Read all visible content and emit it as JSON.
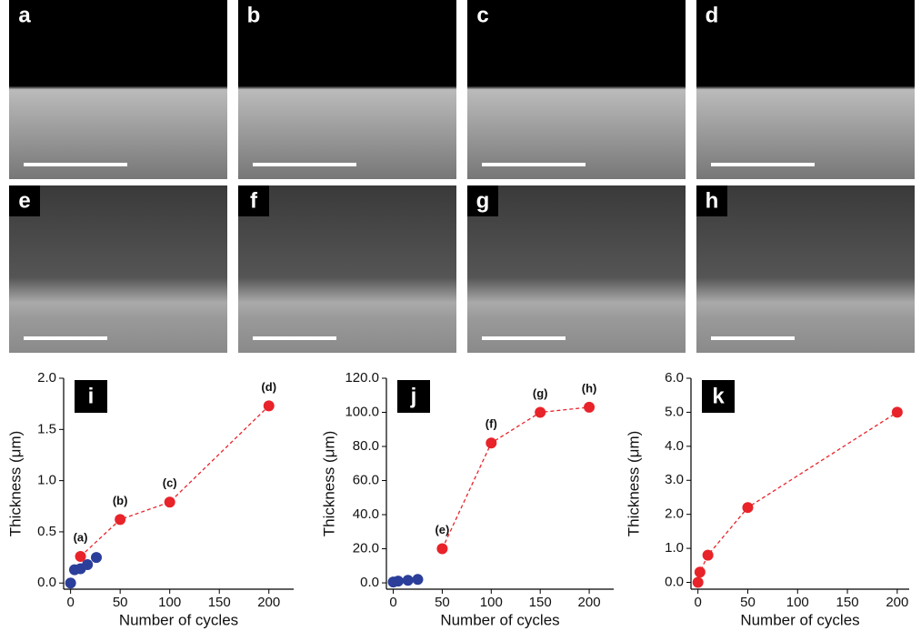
{
  "image_panels": [
    "a",
    "b",
    "c",
    "d",
    "e",
    "f",
    "g",
    "h"
  ],
  "chart_data": [
    {
      "type": "line",
      "panel_label": "i",
      "x_label": "Number of cycles",
      "y_label": "Thickness (μm)",
      "xlim": [
        -7,
        225
      ],
      "xticks": [
        0,
        50,
        100,
        150,
        200
      ],
      "ylim": [
        -0.06,
        2.0
      ],
      "yticks": [
        {
          "value": 0,
          "label": "0.0"
        },
        0.5,
        {
          "value": 1,
          "label": "1.0"
        },
        1.5,
        {
          "value": 2,
          "label": "2.0"
        }
      ],
      "series": [
        {
          "color": "#2b3e9a",
          "line": false,
          "x": [
            0,
            4,
            10,
            17,
            26
          ],
          "values": [
            0.0,
            0.13,
            0.14,
            0.18,
            0.25
          ]
        },
        {
          "color": "#e8232a",
          "line": true,
          "x": [
            10,
            50,
            100,
            200
          ],
          "values": [
            0.26,
            0.62,
            0.79,
            1.73
          ],
          "point_labels": [
            "(a)",
            "(b)",
            "(c)",
            "(d)"
          ]
        }
      ]
    },
    {
      "type": "line",
      "panel_label": "j",
      "x_label": "Number of cycles",
      "y_label": "Thickness (μm)",
      "xlim": [
        -7,
        225
      ],
      "xticks": [
        0,
        50,
        100,
        150,
        200
      ],
      "ylim": [
        -3.7,
        120
      ],
      "yticks": [
        {
          "value": 0,
          "label": "0.0"
        },
        {
          "value": 20,
          "label": "20.0"
        },
        {
          "value": 40,
          "label": "40.0"
        },
        {
          "value": 60,
          "label": "60.0"
        },
        {
          "value": 80,
          "label": "80.0"
        },
        {
          "value": 100,
          "label": "100.0"
        },
        {
          "value": 120,
          "label": "120.0"
        }
      ],
      "series": [
        {
          "color": "#2b3e9a",
          "line": false,
          "x": [
            0,
            5,
            15,
            25
          ],
          "values": [
            0.5,
            1,
            1.5,
            2
          ]
        },
        {
          "color": "#e8232a",
          "line": true,
          "x": [
            50,
            100,
            150,
            200
          ],
          "values": [
            20,
            82,
            100,
            103
          ],
          "point_labels": [
            "(e)",
            "(f)",
            "(g)",
            "(h)"
          ]
        }
      ]
    },
    {
      "type": "line",
      "panel_label": "k",
      "x_label": "Number of cycles",
      "y_label": "Thickness (μm)",
      "xlim": [
        -7,
        212
      ],
      "xticks": [
        0,
        50,
        100,
        150,
        200
      ],
      "ylim": [
        -0.2,
        6.0
      ],
      "yticks": [
        {
          "value": 0,
          "label": "0.0"
        },
        {
          "value": 1,
          "label": "1.0"
        },
        {
          "value": 2,
          "label": "2.0"
        },
        {
          "value": 3,
          "label": "3.0"
        },
        {
          "value": 4,
          "label": "4.0"
        },
        {
          "value": 5,
          "label": "5.0"
        },
        {
          "value": 6,
          "label": "6.0"
        }
      ],
      "series": [
        {
          "color": "#e8232a",
          "line": true,
          "x": [
            0,
            2,
            10,
            50,
            200
          ],
          "values": [
            0.0,
            0.3,
            0.8,
            2.2,
            5.0
          ]
        }
      ]
    }
  ]
}
